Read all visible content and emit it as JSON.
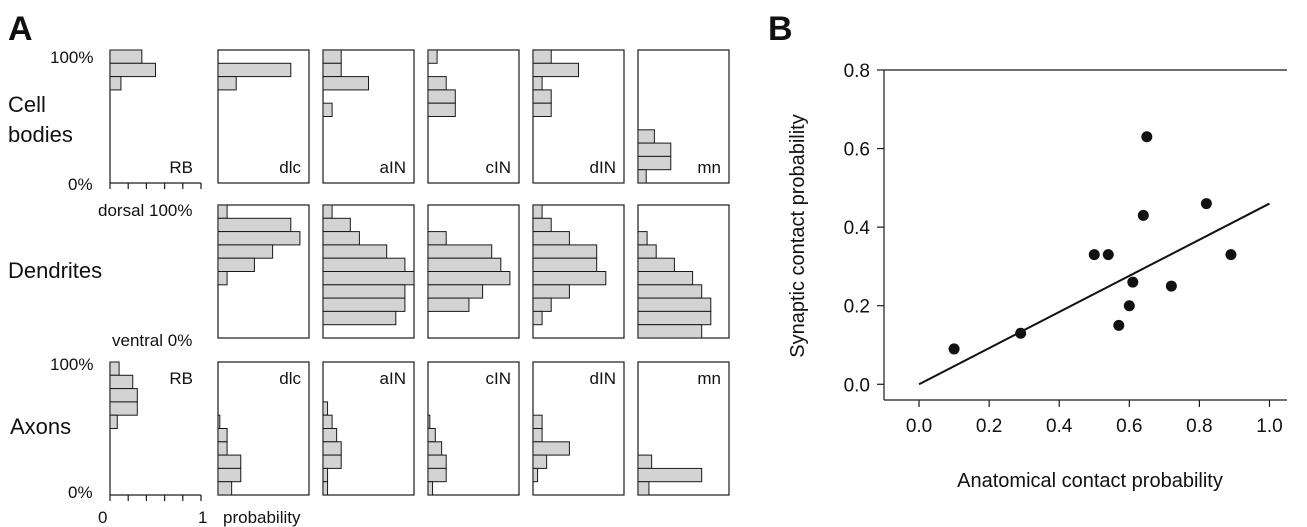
{
  "chart_data": [
    {
      "type": "bar",
      "panel_label": "A",
      "orientation": "horizontal",
      "row_labels": [
        [
          "Cell",
          "bodies"
        ],
        [
          "Dendrites"
        ],
        [
          "Axons"
        ]
      ],
      "y_axis": {
        "cell_top": "100%",
        "cell_bottom": "0%",
        "dend_top": "dorsal 100%",
        "dend_bottom": "ventral 0%",
        "axon_top": "100%",
        "axon_bottom": "0%"
      },
      "x_axis": {
        "min_label": "0",
        "max_label": "1",
        "title": "probability",
        "ticks": [
          0,
          0.2,
          0.4,
          0.6,
          0.8,
          1.0
        ]
      },
      "neuron_types": [
        "RB",
        "dlc",
        "aIN",
        "cIN",
        "dIN",
        "mn"
      ],
      "bins": 10,
      "bin_order": "dorsal (top) to ventral (bottom)",
      "rows": [
        {
          "name": "Cell bodies",
          "labels": [
            "RB",
            "dlc",
            "aIN",
            "cIN",
            "dIN",
            "mn"
          ],
          "values": [
            [
              0.35,
              0.5,
              0.12,
              0,
              0,
              0,
              0,
              0,
              0,
              0
            ],
            [
              0,
              0.8,
              0.2,
              0,
              0,
              0,
              0,
              0,
              0,
              0
            ],
            [
              0.2,
              0.2,
              0.5,
              0,
              0.1,
              0,
              0,
              0,
              0,
              0
            ],
            [
              0.1,
              0,
              0.2,
              0.3,
              0.3,
              0,
              0,
              0,
              0,
              0
            ],
            [
              0.2,
              0.5,
              0.1,
              0.2,
              0.2,
              0,
              0,
              0,
              0,
              0
            ],
            [
              0,
              0,
              0,
              0,
              0,
              0,
              0.18,
              0.36,
              0.36,
              0.09
            ]
          ]
        },
        {
          "name": "Dendrites",
          "labels": [
            "",
            "",
            "",
            "",
            "",
            ""
          ],
          "values": [
            [
              0,
              0,
              0,
              0,
              0,
              0,
              0,
              0,
              0,
              0
            ],
            [
              0.1,
              0.8,
              0.9,
              0.6,
              0.4,
              0.1,
              0,
              0,
              0,
              0
            ],
            [
              0.1,
              0.3,
              0.4,
              0.7,
              0.9,
              1.0,
              0.9,
              0.9,
              0.8,
              0
            ],
            [
              0,
              0,
              0.2,
              0.7,
              0.8,
              0.9,
              0.6,
              0.45,
              0,
              0
            ],
            [
              0.1,
              0.2,
              0.4,
              0.7,
              0.7,
              0.8,
              0.4,
              0.2,
              0.1,
              0
            ],
            [
              0,
              0,
              0.1,
              0.2,
              0.4,
              0.6,
              0.7,
              0.8,
              0.8,
              0.7
            ]
          ]
        },
        {
          "name": "Axons",
          "labels": [
            "RB",
            "dlc",
            "aIN",
            "cIN",
            "dIN",
            "mn"
          ],
          "values": [
            [
              0.1,
              0.25,
              0.3,
              0.3,
              0.08,
              0,
              0,
              0,
              0,
              0
            ],
            [
              0,
              0,
              0,
              0,
              0.02,
              0.1,
              0.1,
              0.25,
              0.25,
              0.15
            ],
            [
              0,
              0,
              0,
              0.05,
              0.1,
              0.15,
              0.2,
              0.2,
              0.05,
              0.05
            ],
            [
              0,
              0,
              0,
              0,
              0.02,
              0.08,
              0.15,
              0.2,
              0.2,
              0.05
            ],
            [
              0,
              0,
              0,
              0,
              0.1,
              0.1,
              0.4,
              0.15,
              0.05,
              0
            ],
            [
              0,
              0,
              0,
              0,
              0,
              0,
              0,
              0.15,
              0.7,
              0.12
            ]
          ]
        }
      ]
    },
    {
      "type": "scatter",
      "panel_label": "B",
      "xlabel": "Anatomical contact probability",
      "ylabel": "Synaptic contact probability",
      "xlim": [
        -0.1,
        1.05
      ],
      "ylim": [
        -0.04,
        0.8
      ],
      "xticks": [
        "0.0",
        "0.2",
        "0.4",
        "0.6",
        "0.8",
        "1.0"
      ],
      "yticks": [
        "0.0",
        "0.2",
        "0.4",
        "0.6",
        "0.8"
      ],
      "points": [
        {
          "x": 0.1,
          "y": 0.09
        },
        {
          "x": 0.29,
          "y": 0.13
        },
        {
          "x": 0.5,
          "y": 0.33
        },
        {
          "x": 0.54,
          "y": 0.33
        },
        {
          "x": 0.57,
          "y": 0.15
        },
        {
          "x": 0.6,
          "y": 0.2
        },
        {
          "x": 0.61,
          "y": 0.26
        },
        {
          "x": 0.64,
          "y": 0.43
        },
        {
          "x": 0.65,
          "y": 0.63
        },
        {
          "x": 0.72,
          "y": 0.25
        },
        {
          "x": 0.82,
          "y": 0.46
        },
        {
          "x": 0.89,
          "y": 0.33
        }
      ],
      "fit_line": {
        "x0": 0.0,
        "y0": 0.0,
        "x1": 1.0,
        "y1": 0.46
      },
      "grid": false
    }
  ]
}
